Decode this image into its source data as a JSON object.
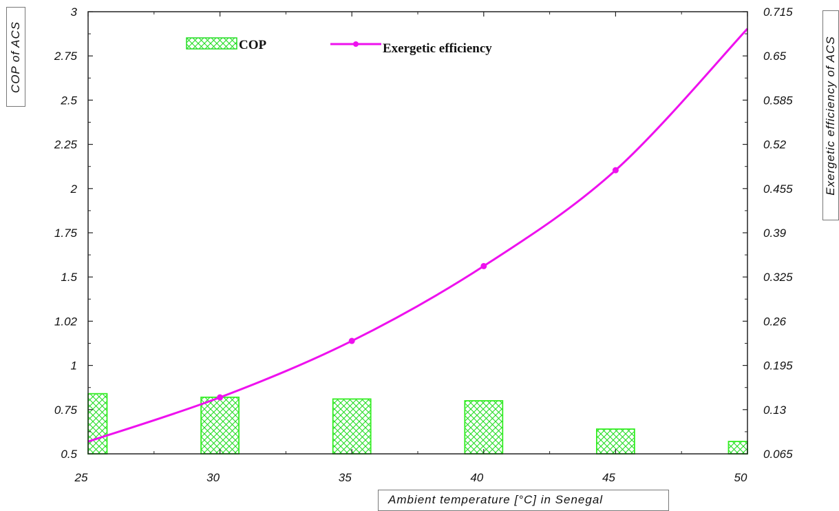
{
  "chart_data": {
    "type": "bar+line",
    "xlabel": "Ambient temperature [°C] in Senegal",
    "ylabel_left": "COP of ACS",
    "ylabel_right": "Exergetic efficiency of ACS",
    "x_ticks": [
      "25",
      "30",
      "35",
      "40",
      "45",
      "50"
    ],
    "y_left_ticks": [
      "0.5",
      "0.75",
      "1",
      "1.02",
      "1.5",
      "1.75",
      "2",
      "2.25",
      "2.5",
      "2.75",
      "3"
    ],
    "y_right_ticks": [
      "0.065",
      "0.13",
      "0.195",
      "0.26",
      "0.325",
      "0.39",
      "0.455",
      "0.52",
      "0.585",
      "0.65",
      "0.715"
    ],
    "xlim": [
      25,
      50
    ],
    "series": [
      {
        "name": "COP",
        "kind": "bar",
        "axis": "left",
        "color": "#33ee22",
        "x": [
          25,
          30,
          35,
          40,
          45,
          50
        ],
        "values": [
          0.84,
          0.82,
          0.81,
          0.8,
          0.64,
          0.57
        ]
      },
      {
        "name": "Exergetic efficiency",
        "kind": "line",
        "axis": "right",
        "color": "#ee11ee",
        "x": [
          25,
          30,
          35,
          40,
          45,
          50
        ],
        "values": [
          0.083,
          0.148,
          0.231,
          0.341,
          0.482,
          0.69
        ]
      }
    ],
    "legend_position": "top",
    "grid": false
  }
}
